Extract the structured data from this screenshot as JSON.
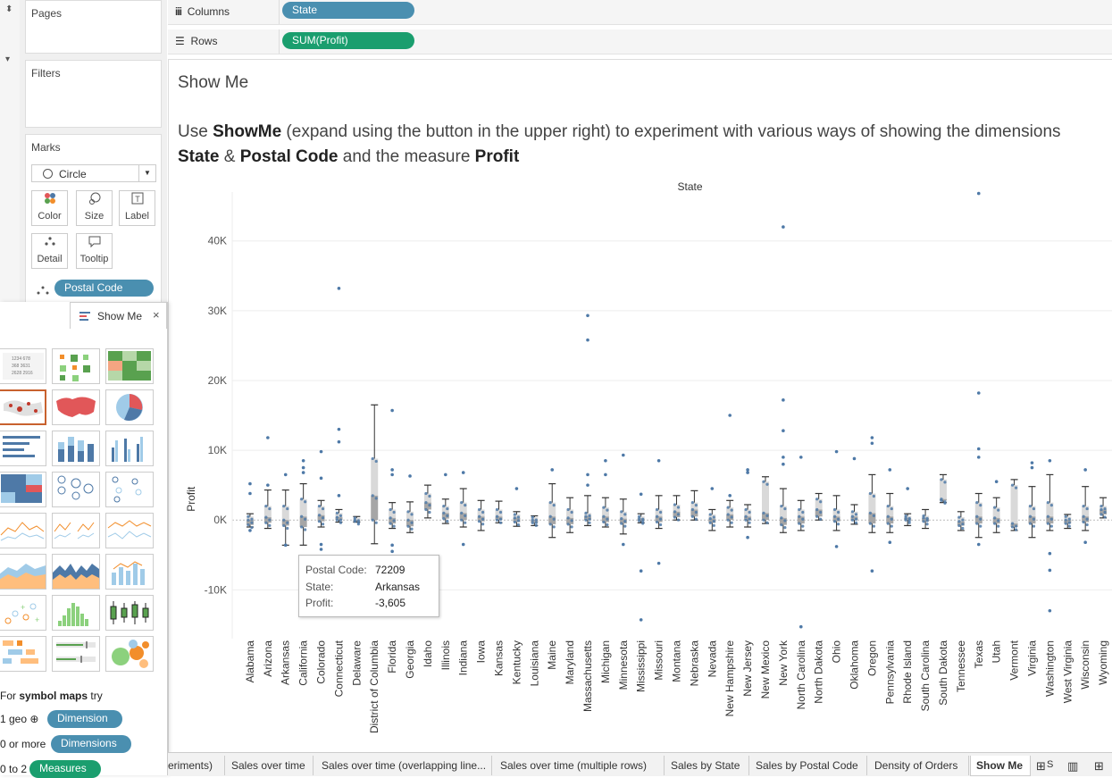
{
  "side": {
    "pages_label": "Pages",
    "filters_label": "Filters",
    "marks_label": "Marks",
    "mark_type": "Circle",
    "mark_buttons": [
      "Color",
      "Size",
      "Label",
      "Detail",
      "Tooltip"
    ],
    "detail_pill": "Postal Code"
  },
  "shelves": {
    "columns_label": "Columns",
    "columns_pill": "State",
    "rows_label": "Rows",
    "rows_pill": "SUM(Profit)"
  },
  "view": {
    "title": "Show Me",
    "caption": {
      "p1": "Use ",
      "b1": "ShowMe",
      "p2": " (expand using the button in the upper right) to experiment with various ways of showing the dimensions ",
      "b2": "State",
      "p3": " & ",
      "b3": "Postal Code",
      "p4": " and the measure ",
      "b4": "Profit"
    }
  },
  "show_me": {
    "tab_label": "Show Me",
    "hint_for": "For ",
    "hint_bold": "symbol maps",
    "hint_try": " try",
    "req1_prefix": "1 geo",
    "req1_pill": "Dimension",
    "req2_prefix": "0 or more",
    "req2_pill": "Dimensions",
    "req3_prefix": "0 to 2",
    "req3_pill": "Measures"
  },
  "tooltip": {
    "rows": [
      {
        "key": "Postal Code:",
        "value": "72209"
      },
      {
        "key": "State:",
        "value": "Arkansas"
      },
      {
        "key": "Profit:",
        "value": "-3,605"
      }
    ]
  },
  "tabs": [
    "eriments)",
    "Sales over time",
    "Sales over time (overlapping line...",
    "Sales over time (multiple rows)",
    "Sales by State",
    "Sales by Postal Code",
    "Density of Orders",
    "Show Me"
  ],
  "colors": {
    "dimension_pill": "#4a8fb0",
    "measure_pill": "#1a9e6e",
    "point": "#4e79a7",
    "box_light": "#d9d9d9",
    "box_dark": "#a6a6a6",
    "whisker": "#333333"
  },
  "chart_data": {
    "type": "scatter",
    "title": "State",
    "ylabel": "Profit",
    "ylim": [
      -17000,
      47000
    ],
    "y_ticks": [
      -10000,
      0,
      10000,
      20000,
      30000,
      40000
    ],
    "y_tick_labels": [
      "-10K",
      "0K",
      "10K",
      "20K",
      "30K",
      "40K"
    ],
    "box_plot": true,
    "categories": [
      "Alabama",
      "Arizona",
      "Arkansas",
      "California",
      "Colorado",
      "Connecticut",
      "Delaware",
      "District of Columbia",
      "Florida",
      "Georgia",
      "Idaho",
      "Illinois",
      "Indiana",
      "Iowa",
      "Kansas",
      "Kentucky",
      "Louisiana",
      "Maine",
      "Maryland",
      "Massachusetts",
      "Michigan",
      "Minnesota",
      "Mississippi",
      "Missouri",
      "Montana",
      "Nebraska",
      "Nevada",
      "New Hampshire",
      "New Jersey",
      "New Mexico",
      "New York",
      "North Carolina",
      "North Dakota",
      "Ohio",
      "Oklahoma",
      "Oregon",
      "Pennsylvania",
      "Rhode Island",
      "South Carolina",
      "South Dakota",
      "Tennessee",
      "Texas",
      "Utah",
      "Vermont",
      "Virginia",
      "Washington",
      "West Virginia",
      "Wisconsin",
      "Wyoming"
    ],
    "boxes": [
      {
        "lo": -1000,
        "q1": -700,
        "med": 0,
        "q3": 500,
        "hi": 900
      },
      {
        "lo": -1200,
        "q1": -400,
        "med": 400,
        "q3": 2000,
        "hi": 4300
      },
      {
        "lo": -3605,
        "q1": -800,
        "med": 0,
        "q3": 2000,
        "hi": 4300
      },
      {
        "lo": -3600,
        "q1": -1000,
        "med": 500,
        "q3": 3000,
        "hi": 5200
      },
      {
        "lo": -1000,
        "q1": -200,
        "med": 700,
        "q3": 2000,
        "hi": 2800
      },
      {
        "lo": -300,
        "q1": 0,
        "med": 400,
        "q3": 1000,
        "hi": 1500
      },
      {
        "lo": -300,
        "q1": -200,
        "med": 0,
        "q3": 300,
        "hi": 500
      },
      {
        "lo": -3400,
        "q1": 0,
        "med": 3500,
        "q3": 8800,
        "hi": 16500
      },
      {
        "lo": -1200,
        "q1": -500,
        "med": 300,
        "q3": 1500,
        "hi": 2500
      },
      {
        "lo": -1800,
        "q1": -900,
        "med": 0,
        "q3": 1200,
        "hi": 2600
      },
      {
        "lo": 300,
        "q1": 1500,
        "med": 2500,
        "q3": 3800,
        "hi": 5000
      },
      {
        "lo": -500,
        "q1": 200,
        "med": 1000,
        "q3": 2000,
        "hi": 3000
      },
      {
        "lo": -1000,
        "q1": 0,
        "med": 1000,
        "q3": 2500,
        "hi": 4500
      },
      {
        "lo": -1500,
        "q1": -200,
        "med": 500,
        "q3": 1500,
        "hi": 2800
      },
      {
        "lo": -400,
        "q1": 0,
        "med": 500,
        "q3": 1500,
        "hi": 2700
      },
      {
        "lo": -900,
        "q1": -300,
        "med": 300,
        "q3": 800,
        "hi": 1200
      },
      {
        "lo": -800,
        "q1": -400,
        "med": 0,
        "q3": 400,
        "hi": 600
      },
      {
        "lo": -2500,
        "q1": -600,
        "med": 500,
        "q3": 2500,
        "hi": 5200
      },
      {
        "lo": -1800,
        "q1": -600,
        "med": 300,
        "q3": 1500,
        "hi": 3200
      },
      {
        "lo": -800,
        "q1": 0,
        "med": 500,
        "q3": 1000,
        "hi": 3500
      },
      {
        "lo": -1000,
        "q1": -300,
        "med": 500,
        "q3": 1800,
        "hi": 3200
      },
      {
        "lo": -2000,
        "q1": -500,
        "med": 200,
        "q3": 1200,
        "hi": 3000
      },
      {
        "lo": -400,
        "q1": -100,
        "med": 200,
        "q3": 500,
        "hi": 900
      },
      {
        "lo": -1200,
        "q1": -300,
        "med": 500,
        "q3": 1500,
        "hi": 3500
      },
      {
        "lo": 0,
        "q1": 400,
        "med": 1200,
        "q3": 2200,
        "hi": 3500
      },
      {
        "lo": 0,
        "q1": 500,
        "med": 1500,
        "q3": 2500,
        "hi": 4200
      },
      {
        "lo": -1500,
        "q1": -400,
        "med": 200,
        "q3": 800,
        "hi": 1500
      },
      {
        "lo": -1000,
        "q1": 0,
        "med": 800,
        "q3": 1800,
        "hi": 2800
      },
      {
        "lo": -1000,
        "q1": 0,
        "med": 500,
        "q3": 1500,
        "hi": 2200
      },
      {
        "lo": -500,
        "q1": 0,
        "med": 1000,
        "q3": 5500,
        "hi": 6200
      },
      {
        "lo": -1800,
        "q1": -700,
        "med": 300,
        "q3": 2000,
        "hi": 4500
      },
      {
        "lo": -1500,
        "q1": -500,
        "med": 500,
        "q3": 1500,
        "hi": 2800
      },
      {
        "lo": 0,
        "q1": 500,
        "med": 1500,
        "q3": 3000,
        "hi": 3800
      },
      {
        "lo": -1500,
        "q1": -200,
        "med": 500,
        "q3": 1500,
        "hi": 3500
      },
      {
        "lo": -600,
        "q1": 0,
        "med": 500,
        "q3": 1200,
        "hi": 2200
      },
      {
        "lo": -1800,
        "q1": -500,
        "med": 1000,
        "q3": 3800,
        "hi": 6500
      },
      {
        "lo": -1800,
        "q1": -500,
        "med": 500,
        "q3": 2000,
        "hi": 3800
      },
      {
        "lo": -800,
        "q1": 0,
        "med": 300,
        "q3": 600,
        "hi": 900
      },
      {
        "lo": -1200,
        "q1": -200,
        "med": 300,
        "q3": 600,
        "hi": 1500
      },
      {
        "lo": 2500,
        "q1": 2800,
        "med": 3000,
        "q3": 5800,
        "hi": 6500
      },
      {
        "lo": -1500,
        "q1": -800,
        "med": -200,
        "q3": 400,
        "hi": 1200
      },
      {
        "lo": -2500,
        "q1": -500,
        "med": 500,
        "q3": 2500,
        "hi": 3800
      },
      {
        "lo": -1800,
        "q1": -500,
        "med": 300,
        "q3": 1800,
        "hi": 3200
      },
      {
        "lo": -1500,
        "q1": -1000,
        "med": -500,
        "q3": 5000,
        "hi": 5800
      },
      {
        "lo": -2500,
        "q1": -500,
        "med": 500,
        "q3": 2000,
        "hi": 4800
      },
      {
        "lo": -1500,
        "q1": -500,
        "med": 500,
        "q3": 2500,
        "hi": 6500
      },
      {
        "lo": -1200,
        "q1": -500,
        "med": 0,
        "q3": 500,
        "hi": 800
      },
      {
        "lo": -1500,
        "q1": -300,
        "med": 500,
        "q3": 2000,
        "hi": 4800
      },
      {
        "lo": 300,
        "q1": 800,
        "med": 1500,
        "q3": 2000,
        "hi": 3200
      }
    ],
    "outliers": [
      {
        "state": "Alabama",
        "values": [
          5200,
          3800,
          -1500
        ]
      },
      {
        "state": "Arizona",
        "values": [
          11800,
          5000
        ]
      },
      {
        "state": "Arkansas",
        "values": [
          -3605,
          6500
        ]
      },
      {
        "state": "California",
        "values": [
          8500,
          7500,
          6800,
          -5500,
          -6500,
          -8200
        ]
      },
      {
        "state": "Colorado",
        "values": [
          9800,
          6000,
          -3500,
          -4200
        ]
      },
      {
        "state": "Connecticut",
        "values": [
          33200,
          13000,
          11200,
          3500
        ]
      },
      {
        "state": "Florida",
        "values": [
          15700,
          7200,
          6500,
          -3600,
          -4500
        ]
      },
      {
        "state": "Georgia",
        "values": [
          6300,
          -5600
        ]
      },
      {
        "state": "Illinois",
        "values": [
          6500
        ]
      },
      {
        "state": "Indiana",
        "values": [
          6800,
          -3500
        ]
      },
      {
        "state": "Kentucky",
        "values": [
          4500
        ]
      },
      {
        "state": "Maine",
        "values": [
          7200
        ]
      },
      {
        "state": "Massachusetts",
        "values": [
          29300,
          25800,
          6500,
          5000
        ]
      },
      {
        "state": "Michigan",
        "values": [
          8500,
          6500
        ]
      },
      {
        "state": "Minnesota",
        "values": [
          9300,
          -3500
        ]
      },
      {
        "state": "Mississippi",
        "values": [
          3700,
          -7300,
          -14300
        ]
      },
      {
        "state": "Missouri",
        "values": [
          8500,
          -6200
        ]
      },
      {
        "state": "Nevada",
        "values": [
          4500
        ]
      },
      {
        "state": "New Hampshire",
        "values": [
          15000,
          3500
        ]
      },
      {
        "state": "New Jersey",
        "values": [
          7200,
          6800,
          -2500
        ]
      },
      {
        "state": "New York",
        "values": [
          42000,
          17200,
          12800,
          9000,
          8000
        ]
      },
      {
        "state": "North Carolina",
        "values": [
          9000,
          -15300
        ]
      },
      {
        "state": "Ohio",
        "values": [
          9800,
          -3800
        ]
      },
      {
        "state": "Oklahoma",
        "values": [
          8800
        ]
      },
      {
        "state": "Oregon",
        "values": [
          11800,
          11000,
          -7300
        ]
      },
      {
        "state": "Pennsylvania",
        "values": [
          7200,
          -3200
        ]
      },
      {
        "state": "Rhode Island",
        "values": [
          4500
        ]
      },
      {
        "state": "Texas",
        "values": [
          46800,
          18200,
          10200,
          9000,
          -3500
        ]
      },
      {
        "state": "Utah",
        "values": [
          5500
        ]
      },
      {
        "state": "Virginia",
        "values": [
          8200,
          7500
        ]
      },
      {
        "state": "Washington",
        "values": [
          8500,
          -4800,
          -7200,
          -13000
        ]
      },
      {
        "state": "Wisconsin",
        "values": [
          7200,
          -3200
        ]
      }
    ]
  }
}
